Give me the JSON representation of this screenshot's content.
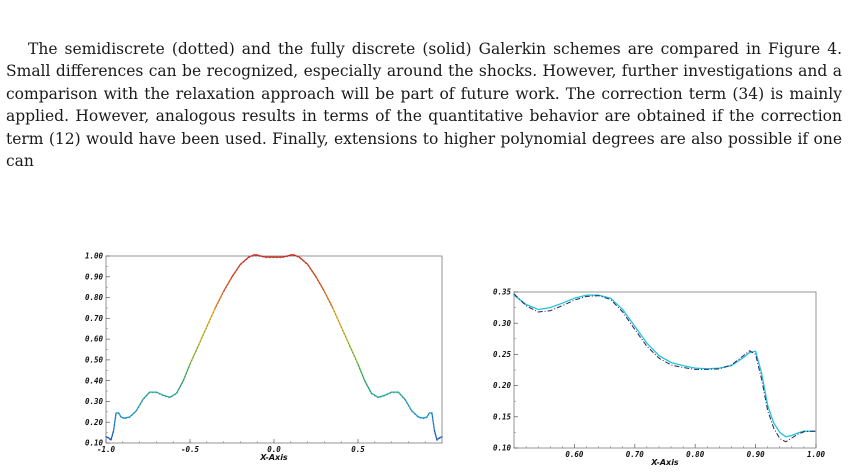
{
  "text": {
    "paragraph": "The semidiscrete (dotted) and the fully discrete (solid) Galerkin schemes are compared in Figure 4. Small differences can be recognized, especially around the shocks. However, further investigations and a comparison with the relaxation approach will be part of future work. The correction term (34) is mainly applied. However, analogous results in terms of the quantitative behavior are obtained if the correction term (12) would have been used. Finally, extensions to higher polynomial degrees are also possible if one can"
  },
  "chart_data": [
    {
      "type": "line",
      "xlabel": "X-Axis",
      "ylabel": "",
      "xlim": [
        -1.0,
        1.0
      ],
      "ylim": [
        0.1,
        1.0
      ],
      "x_ticks": [
        "-1.0",
        "-0.5",
        "0.0",
        "0.5"
      ],
      "x_tick_values": [
        -1.0,
        -0.5,
        0.0,
        0.5
      ],
      "y_ticks": [
        "0.10",
        "0.20",
        "0.30",
        "0.40",
        "0.50",
        "0.60",
        "0.70",
        "0.80",
        "0.90",
        "1.00"
      ],
      "y_tick_values": [
        0.1,
        0.2,
        0.3,
        0.4,
        0.5,
        0.6,
        0.7,
        0.8,
        0.9,
        1.0
      ],
      "colormap": [
        "#1f4fd0",
        "#1fa8d0",
        "#2cb56a",
        "#a8c52a",
        "#f0b21c",
        "#e8541e",
        "#d42a1c"
      ],
      "series": [
        {
          "style": "solid",
          "x": [
            -1.0,
            -0.985,
            -0.97,
            -0.955,
            -0.94,
            -0.925,
            -0.91,
            -0.89,
            -0.86,
            -0.82,
            -0.78,
            -0.74,
            -0.7,
            -0.66,
            -0.62,
            -0.58,
            -0.54,
            -0.5,
            -0.45,
            -0.4,
            -0.35,
            -0.3,
            -0.25,
            -0.2,
            -0.15,
            -0.12,
            -0.1,
            -0.08,
            -0.05,
            -0.02,
            0.0,
            0.02,
            0.05,
            0.08,
            0.1,
            0.12,
            0.15,
            0.2,
            0.25,
            0.3,
            0.35,
            0.4,
            0.45,
            0.5,
            0.54,
            0.58,
            0.62,
            0.66,
            0.7,
            0.74,
            0.78,
            0.82,
            0.86,
            0.89,
            0.91,
            0.925,
            0.94,
            0.955,
            0.97,
            0.985,
            1.0
          ],
          "y": [
            0.13,
            0.125,
            0.115,
            0.16,
            0.245,
            0.245,
            0.225,
            0.22,
            0.225,
            0.255,
            0.31,
            0.345,
            0.345,
            0.33,
            0.32,
            0.34,
            0.4,
            0.48,
            0.57,
            0.66,
            0.75,
            0.83,
            0.9,
            0.96,
            0.995,
            1.005,
            1.005,
            1.0,
            0.995,
            0.995,
            0.995,
            0.995,
            0.995,
            1.0,
            1.005,
            1.005,
            0.995,
            0.96,
            0.9,
            0.83,
            0.75,
            0.66,
            0.57,
            0.48,
            0.4,
            0.34,
            0.32,
            0.33,
            0.345,
            0.345,
            0.31,
            0.255,
            0.225,
            0.22,
            0.225,
            0.245,
            0.245,
            0.16,
            0.115,
            0.125,
            0.13
          ]
        }
      ]
    },
    {
      "type": "line",
      "xlabel": "X-Axis",
      "ylabel": "",
      "xlim": [
        0.5,
        1.0
      ],
      "ylim": [
        0.1,
        0.35
      ],
      "x_ticks": [
        "0.60",
        "0.70",
        "0.80",
        "0.90",
        "1.00"
      ],
      "x_tick_values": [
        0.6,
        0.7,
        0.8,
        0.9,
        1.0
      ],
      "y_ticks": [
        "0.10",
        "0.15",
        "0.20",
        "0.25",
        "0.30",
        "0.35"
      ],
      "y_tick_values": [
        0.1,
        0.15,
        0.2,
        0.25,
        0.3,
        0.35
      ],
      "series": [
        {
          "style": "solid",
          "color": "#22c4d8",
          "x": [
            0.5,
            0.52,
            0.54,
            0.56,
            0.58,
            0.6,
            0.62,
            0.64,
            0.66,
            0.68,
            0.7,
            0.72,
            0.74,
            0.76,
            0.78,
            0.8,
            0.82,
            0.84,
            0.86,
            0.88,
            0.89,
            0.9,
            0.91,
            0.92,
            0.93,
            0.94,
            0.95,
            0.96,
            0.97,
            0.98,
            0.99,
            1.0
          ],
          "y": [
            0.345,
            0.33,
            0.322,
            0.325,
            0.332,
            0.34,
            0.345,
            0.345,
            0.34,
            0.322,
            0.295,
            0.268,
            0.248,
            0.237,
            0.232,
            0.228,
            0.227,
            0.228,
            0.232,
            0.245,
            0.253,
            0.255,
            0.22,
            0.168,
            0.14,
            0.125,
            0.118,
            0.12,
            0.124,
            0.127,
            0.127,
            0.127
          ]
        },
        {
          "style": "dashdot",
          "color": "#2a2060",
          "x": [
            0.5,
            0.52,
            0.54,
            0.56,
            0.58,
            0.6,
            0.62,
            0.64,
            0.66,
            0.68,
            0.7,
            0.72,
            0.74,
            0.76,
            0.78,
            0.8,
            0.82,
            0.84,
            0.86,
            0.88,
            0.89,
            0.9,
            0.91,
            0.92,
            0.93,
            0.94,
            0.95,
            0.96,
            0.97,
            0.98,
            0.99,
            1.0
          ],
          "y": [
            0.347,
            0.328,
            0.318,
            0.32,
            0.328,
            0.337,
            0.343,
            0.344,
            0.338,
            0.318,
            0.29,
            0.263,
            0.244,
            0.233,
            0.229,
            0.226,
            0.226,
            0.227,
            0.233,
            0.248,
            0.256,
            0.25,
            0.21,
            0.16,
            0.132,
            0.115,
            0.11,
            0.116,
            0.122,
            0.126,
            0.127,
            0.127
          ]
        }
      ]
    }
  ]
}
